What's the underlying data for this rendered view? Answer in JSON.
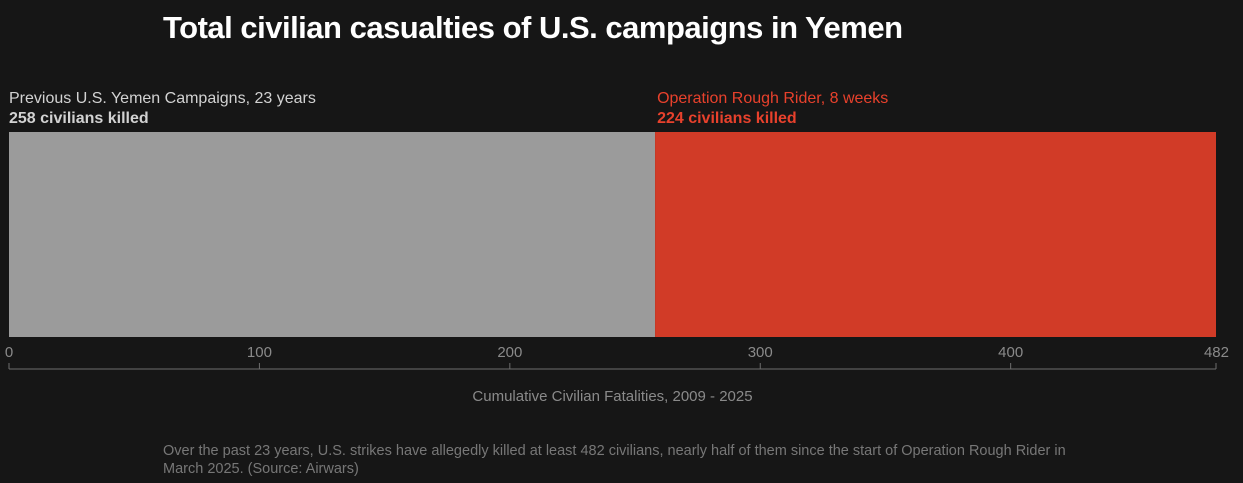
{
  "title": "Total civilian casualties of U.S. campaigns in Yemen",
  "caption": "Over the past 23 years, U.S. strikes have allegedly killed at least 482 civilians, nearly half of them since the start of Operation Rough Rider in March 2025. (Source: Airwars)",
  "chart_data": {
    "type": "bar",
    "orientation": "horizontal-stacked",
    "xlabel": "Cumulative Civilian Fatalities, 2009 - 2025",
    "xlim": [
      0,
      482
    ],
    "xticks": [
      0,
      100,
      200,
      300,
      400,
      482
    ],
    "grid": false,
    "segments": [
      {
        "name": "Previous U.S. Yemen Campaigns, 23 years",
        "label": "258 civilians killed",
        "value": 258,
        "color": "#9b9b9b",
        "label_color": "#d2d2d2"
      },
      {
        "name": "Operation Rough Rider, 8 weeks",
        "label": "224 civilians killed",
        "value": 224,
        "color": "#d13b27",
        "label_color": "#e8412c"
      }
    ]
  }
}
